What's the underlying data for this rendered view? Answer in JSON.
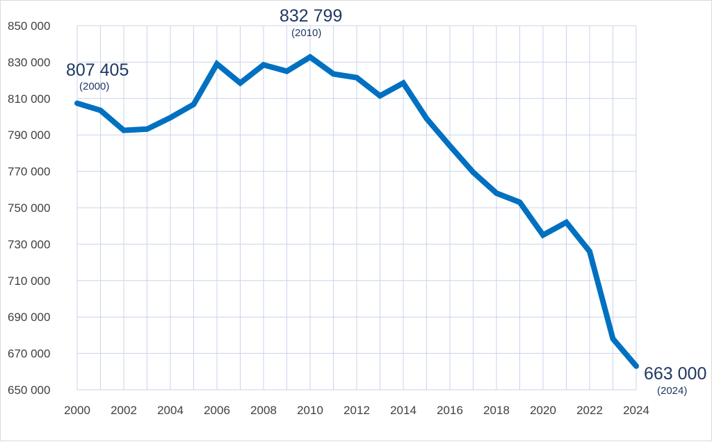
{
  "chart_data": {
    "type": "line",
    "title": "",
    "xlabel": "",
    "ylabel": "",
    "xlim": [
      2000,
      2024
    ],
    "ylim": [
      650000,
      850000
    ],
    "grid": true,
    "series_color": "#0070c0",
    "y_ticks": [
      650000,
      670000,
      690000,
      710000,
      730000,
      750000,
      770000,
      790000,
      810000,
      830000,
      850000
    ],
    "y_tick_labels": [
      "650 000",
      "670 000",
      "690 000",
      "710 000",
      "730 000",
      "750 000",
      "770 000",
      "790 000",
      "810 000",
      "830 000",
      "850 000"
    ],
    "x_ticks": [
      2000,
      2002,
      2004,
      2006,
      2008,
      2010,
      2012,
      2014,
      2016,
      2018,
      2020,
      2022,
      2024
    ],
    "x_tick_labels": [
      "2000",
      "2002",
      "2004",
      "2006",
      "2008",
      "2010",
      "2012",
      "2014",
      "2016",
      "2018",
      "2020",
      "2022",
      "2024"
    ],
    "x": [
      2000,
      2001,
      2002,
      2003,
      2004,
      2005,
      2006,
      2007,
      2008,
      2009,
      2010,
      2011,
      2012,
      2013,
      2014,
      2015,
      2016,
      2017,
      2018,
      2019,
      2020,
      2021,
      2022,
      2023,
      2024
    ],
    "series": [
      {
        "values": [
          807405,
          803500,
          792500,
          793200,
          799500,
          806800,
          829000,
          818500,
          828500,
          825000,
          832799,
          823500,
          821500,
          811500,
          818500,
          799000,
          784000,
          769500,
          758000,
          753000,
          735000,
          742000,
          726000,
          678000,
          663000
        ]
      }
    ],
    "annotations": [
      {
        "value": "807 405",
        "year": "(2000)"
      },
      {
        "value": "832 799",
        "year": "(2010)"
      },
      {
        "value": "663 000",
        "year": "(2024)"
      }
    ]
  }
}
